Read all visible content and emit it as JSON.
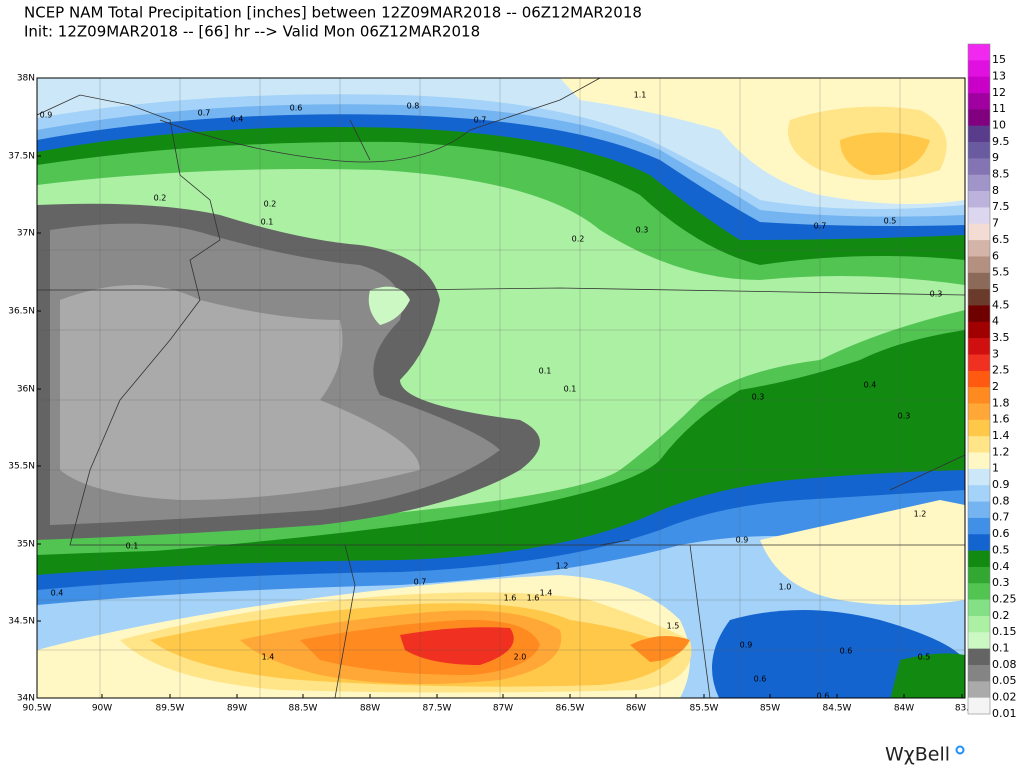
{
  "header": {
    "line1": "NCEP NAM Total Precipitation [inches] between 12Z09MAR2018 -- 06Z12MAR2018",
    "line2": "Init: 12Z09MAR2018 -- [66] hr --> Valid Mon 06Z12MAR2018"
  },
  "map": {
    "lat_labels": [
      "38N",
      "37.5N",
      "37N",
      "36.5N",
      "36N",
      "35.5N",
      "35N",
      "34.5N",
      "34N"
    ],
    "lon_labels": [
      "90.5W",
      "90W",
      "89.5W",
      "89W",
      "88.5W",
      "88W",
      "87.5W",
      "87W",
      "86.5W",
      "86W",
      "85.5W",
      "85W",
      "84.5W",
      "84W",
      "83."
    ],
    "contour_labels": [
      "0.9",
      "0.7",
      "0.4",
      "0.6",
      "0.8",
      "0.7",
      "1.1",
      "0.2",
      "0.2",
      "0.1",
      "0.2",
      "0.3",
      "0.7",
      "0.5",
      "0.3",
      "0.1",
      "0.1",
      "0.3",
      "0.4",
      "0.3",
      "1.2",
      "0.9",
      "0.1",
      "1.2",
      "0.7",
      "1.6",
      "1.6",
      "1.4",
      "1.0",
      "0.4",
      "1.5",
      "1.4",
      "2.0",
      "0.9",
      "0.6",
      "0.5",
      "0.6",
      "0.6"
    ]
  },
  "legend": {
    "levels": [
      {
        "label": "15",
        "color": "#f028f0"
      },
      {
        "label": "13",
        "color": "#e010e0"
      },
      {
        "label": "12",
        "color": "#c800c8"
      },
      {
        "label": "11",
        "color": "#a000a0"
      },
      {
        "label": "10",
        "color": "#800080"
      },
      {
        "label": "9.5",
        "color": "#5a3c8c"
      },
      {
        "label": "9",
        "color": "#6a5aa0"
      },
      {
        "label": "8.5",
        "color": "#8474b4"
      },
      {
        "label": "8",
        "color": "#a094c8"
      },
      {
        "label": "7.5",
        "color": "#bcb2dc"
      },
      {
        "label": "7",
        "color": "#dcd6ee"
      },
      {
        "label": "6.5",
        "color": "#f2dcd4"
      },
      {
        "label": "6",
        "color": "#d4b4a8"
      },
      {
        "label": "5.5",
        "color": "#b49080"
      },
      {
        "label": "5",
        "color": "#8c6a5a"
      },
      {
        "label": "4.5",
        "color": "#6a3a2a"
      },
      {
        "label": "4",
        "color": "#6e0000"
      },
      {
        "label": "3.5",
        "color": "#a00000"
      },
      {
        "label": "3",
        "color": "#d01010"
      },
      {
        "label": "2.5",
        "color": "#f03020"
      },
      {
        "label": "2",
        "color": "#ff5a10"
      },
      {
        "label": "1.8",
        "color": "#ff8a20"
      },
      {
        "label": "1.6",
        "color": "#ffa838"
      },
      {
        "label": "1.4",
        "color": "#ffc848"
      },
      {
        "label": "1.2",
        "color": "#ffe488"
      },
      {
        "label": "1",
        "color": "#fff8c4"
      },
      {
        "label": "0.9",
        "color": "#cce8f8"
      },
      {
        "label": "0.8",
        "color": "#a4d2f8"
      },
      {
        "label": "0.7",
        "color": "#74b4f0"
      },
      {
        "label": "0.6",
        "color": "#4090e8"
      },
      {
        "label": "0.5",
        "color": "#1464d0"
      },
      {
        "label": "0.4",
        "color": "#128a12"
      },
      {
        "label": "0.3",
        "color": "#32a832"
      },
      {
        "label": "0.25",
        "color": "#52c452"
      },
      {
        "label": "0.2",
        "color": "#84e084"
      },
      {
        "label": "0.15",
        "color": "#acf0a4"
      },
      {
        "label": "0.1",
        "color": "#ccf8c4"
      },
      {
        "label": "0.08",
        "color": "#646464"
      },
      {
        "label": "0.05",
        "color": "#848484"
      },
      {
        "label": "0.02",
        "color": "#aaaaaa"
      },
      {
        "label": "0.01",
        "color": "#f4f4f4"
      }
    ]
  },
  "brand": "WχBell"
}
